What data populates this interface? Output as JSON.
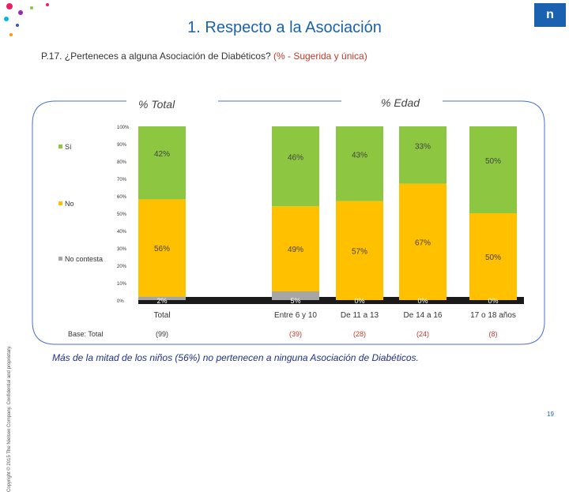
{
  "slide": {
    "title": "1. Respecto a la Asociación",
    "subtitle_main": "P.17. ¿Perteneces a alguna Asociación de Diabéticos? ",
    "subtitle_note": "(% - Sugerida y única)",
    "logo_text": "n",
    "copyright": "Copyright © 2015 The Nielsen Company. Confidential and proprietary.",
    "section_total": "% Total",
    "section_edad": "% Edad",
    "footnote": "Más de la mitad de los niños (56%) no pertenecen a ninguna Asociación de Diabéticos.",
    "page_number": "19",
    "colors": {
      "accent": "#1a62b0",
      "si": "#8dc641",
      "no": "#ffc000",
      "no_contesta": "#a6a6a6",
      "dark_band": "#1a1a1a"
    }
  },
  "chart_data": {
    "type": "bar",
    "stacked": true,
    "ylim": [
      0,
      100
    ],
    "y_ticks": [
      "100%",
      "90%",
      "80%",
      "70%",
      "60%",
      "50%",
      "40%",
      "30%",
      "20%",
      "10%",
      "0%"
    ],
    "categories": [
      "Total",
      "Entre 6 y 10",
      "De 11 a 13",
      "De 14 a 16",
      "17 o 18 años"
    ],
    "base_label": "Base: Total",
    "bases": [
      "(99)",
      "(39)",
      "(28)",
      "(24)",
      "(8)"
    ],
    "series": [
      {
        "name": "No contesta",
        "values": [
          2,
          5,
          0,
          0,
          0
        ],
        "labels": [
          "2%",
          "5%",
          "0%",
          "0%",
          "0%"
        ]
      },
      {
        "name": "No",
        "values": [
          56,
          49,
          57,
          67,
          50
        ],
        "labels": [
          "56%",
          "49%",
          "57%",
          "67%",
          "50%"
        ]
      },
      {
        "name": "Sí",
        "values": [
          42,
          46,
          43,
          33,
          50
        ],
        "labels": [
          "42%",
          "46%",
          "43%",
          "33%",
          "50%"
        ]
      }
    ],
    "legend": [
      "Sí",
      "No",
      "No contesta"
    ]
  }
}
